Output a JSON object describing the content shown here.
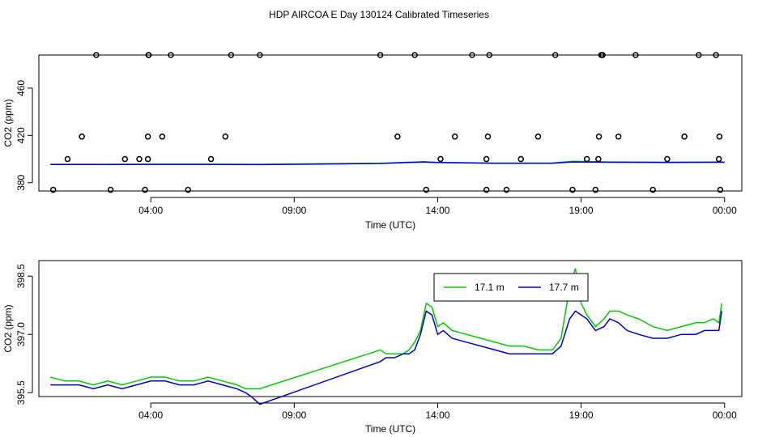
{
  "title": "HDP AIRCOA E  Day 130124  Calibrated Timeseries",
  "chart_data": [
    {
      "type": "scatter+line",
      "name": "top-panel",
      "xlabel": "Time (UTC)",
      "ylabel": "CO2 (ppm)",
      "xlim": [
        0.1,
        24.6
      ],
      "ylim": [
        373,
        488
      ],
      "x_ticks": [
        {
          "value": 4,
          "label": "04:00"
        },
        {
          "value": 9,
          "label": "09:00"
        },
        {
          "value": 14,
          "label": "14:00"
        },
        {
          "value": 19,
          "label": "19:00"
        },
        {
          "value": 24,
          "label": "00:00"
        }
      ],
      "y_ticks": [
        {
          "value": 380,
          "label": "380"
        },
        {
          "value": 420,
          "label": "420"
        },
        {
          "value": 460,
          "label": "460"
        }
      ],
      "points": {
        "x": [
          0.6,
          1.1,
          1.6,
          2.1,
          2.6,
          3.1,
          3.6,
          3.8,
          3.9,
          3.9,
          3.92,
          3.93,
          4.4,
          4.7,
          5.3,
          6.1,
          6.6,
          6.8,
          7.8,
          12.0,
          12.6,
          13.2,
          13.6,
          14.1,
          14.6,
          15.2,
          15.7,
          15.7,
          15.75,
          15.8,
          16.4,
          16.9,
          17.5,
          18.1,
          18.7,
          19.2,
          19.5,
          19.6,
          19.62,
          19.7,
          19.75,
          20.3,
          20.9,
          21.5,
          22.0,
          22.6,
          23.1,
          23.7,
          23.8,
          23.82,
          23.85
        ],
        "y": [
          374,
          400,
          419,
          488,
          374,
          400,
          400,
          374,
          400,
          419,
          488,
          488,
          419,
          488,
          374,
          400,
          419,
          488,
          488,
          488,
          419,
          488,
          374,
          400,
          419,
          488,
          374,
          400,
          419,
          488,
          374,
          400,
          419,
          488,
          374,
          400,
          374,
          400,
          419,
          488,
          488,
          419,
          488,
          374,
          400,
          419,
          488,
          488,
          400,
          419,
          374
        ]
      },
      "series": [
        {
          "color": "#00cc00",
          "x": [
            0.5,
            2,
            4,
            6,
            7.8,
            12.0,
            13.5,
            14,
            16,
            18,
            18.7,
            20,
            22,
            24
          ],
          "y": [
            395.5,
            395.5,
            395.6,
            395.6,
            395.5,
            396.5,
            397.8,
            397.2,
            396.6,
            396.7,
            398.2,
            397.6,
            397.4,
            397.6
          ]
        },
        {
          "color": "#0000cc",
          "x": [
            0.5,
            2,
            4,
            6,
            7.8,
            12.0,
            13.5,
            14,
            16,
            18,
            18.7,
            20,
            22,
            24
          ],
          "y": [
            395.4,
            395.4,
            395.5,
            395.5,
            395.3,
            396.3,
            397.5,
            397.0,
            396.4,
            396.5,
            397.6,
            397.3,
            397.1,
            397.3
          ]
        }
      ]
    },
    {
      "type": "line",
      "name": "bottom-panel",
      "xlabel": "Time (UTC)",
      "ylabel": "CO2 (ppm)",
      "xlim": [
        0.1,
        24.6
      ],
      "ylim": [
        395.4,
        398.9
      ],
      "x_ticks": [
        {
          "value": 4,
          "label": "04:00"
        },
        {
          "value": 9,
          "label": "09:00"
        },
        {
          "value": 14,
          "label": "14:00"
        },
        {
          "value": 19,
          "label": "19:00"
        },
        {
          "value": 24,
          "label": "00:00"
        }
      ],
      "y_ticks": [
        {
          "value": 395.5,
          "label": "395.5"
        },
        {
          "value": 397.0,
          "label": "397.0"
        },
        {
          "value": 398.5,
          "label": "398.5"
        }
      ],
      "legend": {
        "placement": "top-center",
        "entries": [
          {
            "label": "17.1 m",
            "color": "#00cc00"
          },
          {
            "label": "17.7 m",
            "color": "#0000cc"
          }
        ]
      },
      "series": [
        {
          "name": "17.1 m",
          "color": "#00cc00",
          "x": [
            0.5,
            1.0,
            1.5,
            2.0,
            2.5,
            3.0,
            3.5,
            4.0,
            4.5,
            5.0,
            5.5,
            6.0,
            6.5,
            7.0,
            7.3,
            7.5,
            7.8,
            12.0,
            12.2,
            12.5,
            12.8,
            13.0,
            13.2,
            13.4,
            13.6,
            13.8,
            14.0,
            14.2,
            14.5,
            15.0,
            15.5,
            16.0,
            16.5,
            17.0,
            17.5,
            18.0,
            18.3,
            18.6,
            18.8,
            19.0,
            19.2,
            19.5,
            19.8,
            20.0,
            20.3,
            20.6,
            21.0,
            21.5,
            22.0,
            22.5,
            23.0,
            23.3,
            23.6,
            23.8,
            23.9
          ],
          "y": [
            395.9,
            395.8,
            395.8,
            395.7,
            395.8,
            395.7,
            395.8,
            395.9,
            395.9,
            395.8,
            395.8,
            395.9,
            395.8,
            395.7,
            395.6,
            395.6,
            395.6,
            396.6,
            396.5,
            396.5,
            396.5,
            396.6,
            396.8,
            397.1,
            397.8,
            397.7,
            397.2,
            397.3,
            397.1,
            397.0,
            396.9,
            396.8,
            396.7,
            396.7,
            396.6,
            396.6,
            396.9,
            398.2,
            398.7,
            397.8,
            397.5,
            397.2,
            397.4,
            397.6,
            397.6,
            397.5,
            397.4,
            397.2,
            397.1,
            397.2,
            397.3,
            397.3,
            397.4,
            397.3,
            397.8
          ]
        },
        {
          "name": "17.7 m",
          "color": "#0000cc",
          "x": [
            0.5,
            1.0,
            1.5,
            2.0,
            2.5,
            3.0,
            3.5,
            4.0,
            4.5,
            5.0,
            5.5,
            6.0,
            6.5,
            7.0,
            7.3,
            7.5,
            7.8,
            12.0,
            12.2,
            12.5,
            12.8,
            13.0,
            13.2,
            13.4,
            13.6,
            13.8,
            14.0,
            14.2,
            14.5,
            15.0,
            15.5,
            16.0,
            16.5,
            17.0,
            17.5,
            18.0,
            18.3,
            18.6,
            18.8,
            19.0,
            19.2,
            19.5,
            19.8,
            20.0,
            20.3,
            20.6,
            21.0,
            21.5,
            22.0,
            22.5,
            23.0,
            23.3,
            23.6,
            23.8,
            23.9
          ],
          "y": [
            395.7,
            395.7,
            395.7,
            395.6,
            395.7,
            395.6,
            395.7,
            395.8,
            395.8,
            395.7,
            395.7,
            395.8,
            395.7,
            395.6,
            395.5,
            395.4,
            395.2,
            396.3,
            396.4,
            396.4,
            396.5,
            396.5,
            396.6,
            397.0,
            397.6,
            397.5,
            397.0,
            397.1,
            396.9,
            396.8,
            396.7,
            396.6,
            396.5,
            396.5,
            396.5,
            396.5,
            396.7,
            397.4,
            397.6,
            397.5,
            397.4,
            397.1,
            397.2,
            397.4,
            397.3,
            397.1,
            397.0,
            396.9,
            396.9,
            397.0,
            397.0,
            397.1,
            397.1,
            397.1,
            397.6
          ]
        }
      ]
    }
  ]
}
